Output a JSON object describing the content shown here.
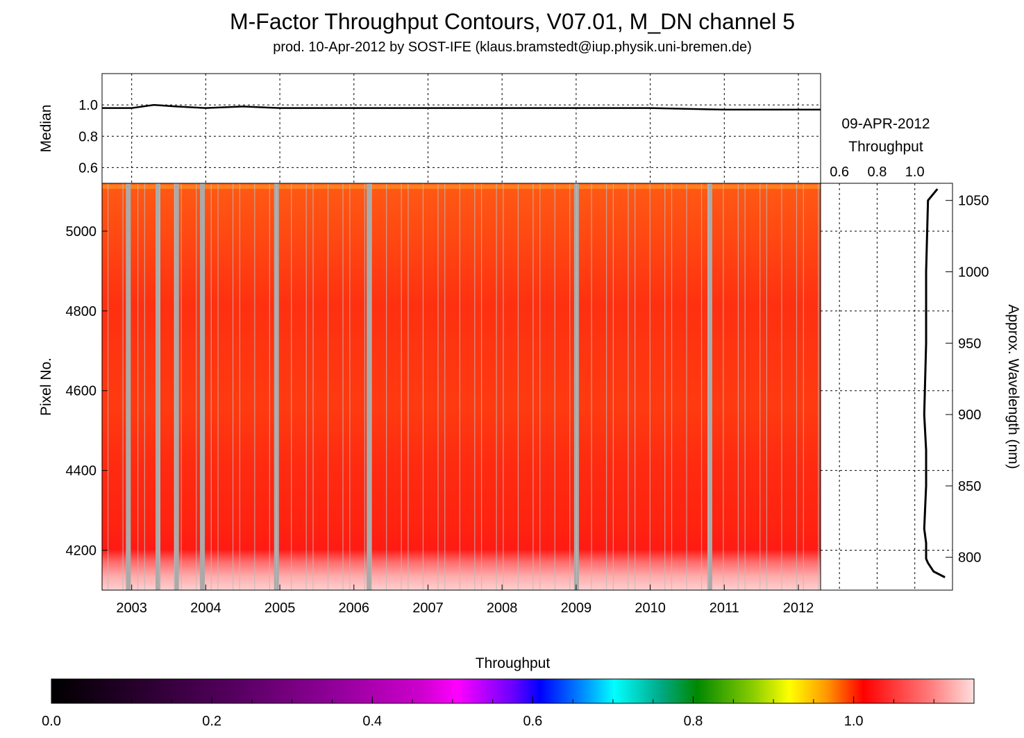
{
  "chart_data": [
    {
      "type": "line",
      "title": "M-Factor Throughput Contours, V07.01, M_DN channel 5",
      "subtitle": "prod. 10-Apr-2012 by SOST-IFE (klaus.bramstedt@iup.physik.uni-bremen.de)",
      "ylabel": "Median",
      "ylim": [
        0.5,
        1.2
      ],
      "xlim": [
        2002.6,
        2012.3
      ],
      "yticks": [
        "0.6",
        "0.8",
        "1.0"
      ],
      "grid": true,
      "series": [
        {
          "x": [
            2002.6,
            2003.0,
            2003.3,
            2003.6,
            2004.0,
            2004.5,
            2005.0,
            2006.0,
            2007.0,
            2008.0,
            2009.0,
            2010.0,
            2011.0,
            2012.3
          ],
          "values": [
            0.98,
            0.98,
            1.0,
            0.99,
            0.98,
            0.99,
            0.98,
            0.98,
            0.98,
            0.98,
            0.98,
            0.98,
            0.97,
            0.97
          ]
        }
      ]
    },
    {
      "type": "heatmap",
      "ylabel": "Pixel No.",
      "xlim": [
        2002.6,
        2012.3
      ],
      "ylim": [
        4100,
        5120
      ],
      "xticks": [
        "2003",
        "2004",
        "2005",
        "2006",
        "2007",
        "2008",
        "2009",
        "2010",
        "2011",
        "2012"
      ],
      "yticks": [
        "4200",
        "4400",
        "4600",
        "4800",
        "5000"
      ],
      "gaps": [
        2002.95,
        2003.35,
        2003.6,
        2003.95,
        2004.95,
        2006.2,
        2009.0,
        2010.8
      ],
      "colorbar": {
        "label": "Throughput",
        "range": [
          0.0,
          1.15
        ],
        "ticks": [
          "0.0",
          "0.2",
          "0.4",
          "0.6",
          "0.8",
          "1.0"
        ]
      }
    },
    {
      "type": "line",
      "title": "09-APR-2012",
      "xlabel": "Throughput",
      "ylabel": "Approx. Wavelength (nm)",
      "xticks": [
        "0.6",
        "0.8",
        "1.0"
      ],
      "xlim": [
        0.5,
        1.2
      ],
      "ylim": [
        777,
        1062
      ],
      "yticks": [
        "800",
        "850",
        "900",
        "950",
        "1000",
        "1050"
      ],
      "series": [
        {
          "x": [
            1.12,
            1.07,
            1.06,
            1.06,
            1.05,
            1.06,
            1.06,
            1.05,
            1.06,
            1.06,
            1.06,
            1.07,
            1.1,
            1.16
          ],
          "values": [
            1058,
            1050,
            1000,
            950,
            900,
            875,
            850,
            820,
            810,
            802,
            799,
            796,
            790,
            786
          ]
        }
      ]
    }
  ]
}
